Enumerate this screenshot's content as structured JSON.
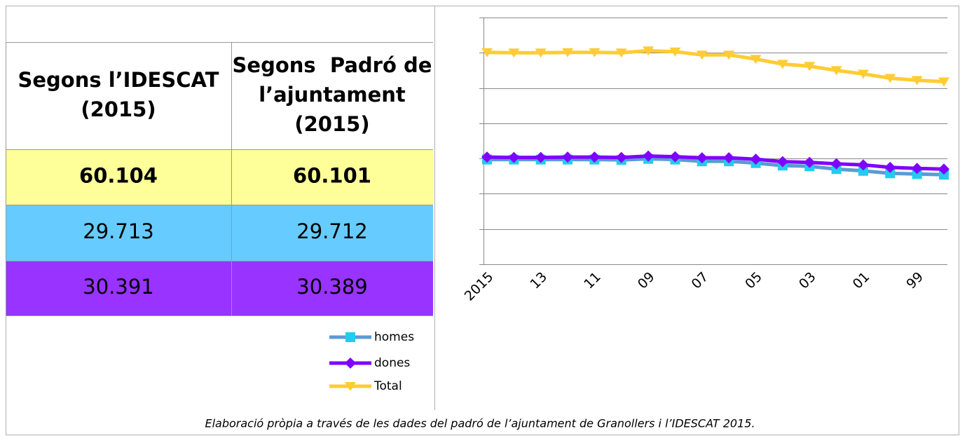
{
  "table": {
    "header": [
      [
        "Segons l’IDESCAT",
        "(2015)"
      ],
      [
        "Segons  Padró de",
        "l’ajuntament",
        "(2015)"
      ]
    ],
    "rows": [
      [
        "60.104",
        "60.101"
      ],
      [
        "29.713",
        "29.712"
      ],
      [
        "30.391",
        "30.389"
      ]
    ]
  },
  "chart_data": {
    "type": "line",
    "categories": [
      "2015",
      null,
      "13",
      null,
      "11",
      null,
      "09",
      null,
      "07",
      null,
      "05",
      null,
      "03",
      null,
      "01",
      null,
      "99",
      null
    ],
    "series": [
      {
        "name": "homes",
        "color": "#5b9bd5",
        "marker_color": "#22ccee",
        "marker": "square",
        "values": [
          29700,
          29700,
          29700,
          29700,
          29700,
          29600,
          29900,
          29700,
          29200,
          29200,
          28700,
          28000,
          27800,
          27000,
          26500,
          25800,
          25600,
          25400
        ]
      },
      {
        "name": "dones",
        "color": "#8000ff",
        "marker_color": "#8000ff",
        "marker": "diamond",
        "values": [
          30400,
          30300,
          30300,
          30400,
          30400,
          30300,
          30700,
          30500,
          30200,
          30200,
          29800,
          29100,
          28900,
          28500,
          28200,
          27500,
          27200,
          27000
        ]
      },
      {
        "name": "Total",
        "color": "#ffcc33",
        "marker_color": "#ffcc33",
        "marker": "triangle-down",
        "values": [
          60100,
          60000,
          60000,
          60100,
          60100,
          60000,
          60600,
          60300,
          59400,
          59400,
          58200,
          56800,
          56200,
          55000,
          54000,
          52800,
          52200,
          51800
        ]
      }
    ],
    "ylim": [
      0,
      70000
    ],
    "yticks": [
      0,
      10000,
      20000,
      30000,
      40000,
      50000,
      60000,
      70000
    ],
    "grid": true,
    "annotation": "Elaboració pròpia a través de les dades del padró de l’ajuntament de Granollers i l’IDESCAT 2015."
  }
}
